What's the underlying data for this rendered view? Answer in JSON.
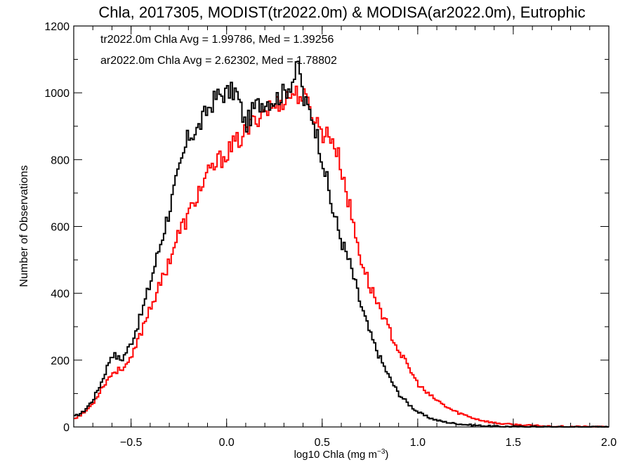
{
  "chart_data": {
    "type": "line",
    "title": "Chla, 2017305, MODIST(tr2022.0m) & MODISA(ar2022.0m), Eutrophic",
    "xlabel": "log10 Chla (mg m",
    "xlabel_sup": "−3",
    "xlabel_end": ")",
    "ylabel": "Number of Observations",
    "xlim": [
      -0.8,
      2.0
    ],
    "ylim": [
      0,
      1200
    ],
    "x_ticks": [
      -0.5,
      0.0,
      0.5,
      1.0,
      1.5,
      2.0
    ],
    "x_tick_labels": [
      "−0.5",
      "0.0",
      "0.5",
      "1.0",
      "1.5",
      "2.0"
    ],
    "y_ticks": [
      0,
      200,
      400,
      600,
      800,
      1000,
      1200
    ],
    "y_tick_labels": [
      "0",
      "200",
      "400",
      "600",
      "800",
      "1000",
      "1200"
    ],
    "grid": false,
    "series": [
      {
        "name": "tr2022.0m",
        "color": "#000000",
        "annotation": "tr2022.0m Chla Avg = 1.99786, Med = 1.39256",
        "x": [
          -0.8,
          -0.75,
          -0.7,
          -0.65,
          -0.6,
          -0.55,
          -0.5,
          -0.45,
          -0.4,
          -0.35,
          -0.3,
          -0.25,
          -0.2,
          -0.15,
          -0.1,
          -0.05,
          0.0,
          0.05,
          0.1,
          0.15,
          0.2,
          0.25,
          0.3,
          0.35,
          0.38,
          0.4,
          0.45,
          0.5,
          0.55,
          0.6,
          0.65,
          0.7,
          0.75,
          0.8,
          0.85,
          0.9,
          0.95,
          1.0,
          1.05,
          1.1,
          1.15,
          1.2,
          1.25,
          1.3,
          1.35,
          1.4,
          1.5,
          1.6,
          1.7,
          1.8,
          2.0
        ],
        "y": [
          30,
          45,
          80,
          140,
          220,
          200,
          250,
          330,
          430,
          540,
          650,
          760,
          870,
          890,
          950,
          990,
          1000,
          1005,
          900,
          960,
          975,
          980,
          1000,
          1040,
          1090,
          980,
          930,
          810,
          660,
          560,
          480,
          370,
          280,
          210,
          150,
          100,
          70,
          45,
          30,
          20,
          14,
          10,
          7,
          5,
          3,
          2,
          1,
          1,
          0,
          0,
          0
        ]
      },
      {
        "name": "ar2022.0m",
        "color": "#ff0000",
        "annotation": "ar2022.0m Chla Avg = 2.62302, Med = 1.78802",
        "x": [
          -0.8,
          -0.75,
          -0.7,
          -0.65,
          -0.6,
          -0.55,
          -0.5,
          -0.45,
          -0.4,
          -0.35,
          -0.3,
          -0.25,
          -0.2,
          -0.15,
          -0.1,
          -0.05,
          0.0,
          0.05,
          0.1,
          0.15,
          0.2,
          0.25,
          0.3,
          0.35,
          0.4,
          0.45,
          0.5,
          0.55,
          0.6,
          0.65,
          0.7,
          0.75,
          0.8,
          0.85,
          0.9,
          0.95,
          1.0,
          1.05,
          1.1,
          1.15,
          1.2,
          1.25,
          1.3,
          1.35,
          1.4,
          1.5,
          1.6,
          1.7,
          1.8,
          2.0
        ],
        "y": [
          25,
          40,
          70,
          120,
          160,
          175,
          200,
          280,
          360,
          420,
          500,
          580,
          630,
          700,
          750,
          790,
          820,
          850,
          880,
          920,
          950,
          960,
          980,
          1000,
          990,
          940,
          880,
          870,
          780,
          640,
          510,
          420,
          360,
          290,
          230,
          180,
          130,
          100,
          80,
          60,
          45,
          35,
          25,
          18,
          12,
          7,
          4,
          2,
          1,
          0
        ]
      }
    ]
  }
}
